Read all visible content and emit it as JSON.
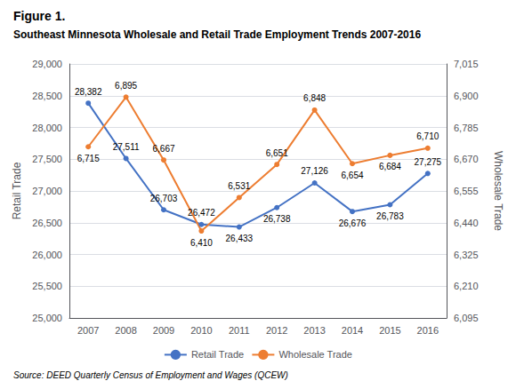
{
  "chart_data": {
    "type": "line",
    "title": "Figure 1.",
    "subtitle": "Southeast Minnesota Wholesale and Retail Trade Employment Trends 2007-2016",
    "source": "Source: DEED Quarterly Census of Employment and Wages (QCEW)",
    "categories": [
      "2007",
      "2008",
      "2009",
      "2010",
      "2011",
      "2012",
      "2013",
      "2014",
      "2015",
      "2016"
    ],
    "ylabel": "Retail Trade",
    "y2label": "Wholesale Trade",
    "ylim": [
      25000,
      29000
    ],
    "yticks": [
      {
        "value": 25000,
        "label": "25,000"
      },
      {
        "value": 25500,
        "label": "25,500"
      },
      {
        "value": 26000,
        "label": "26,000"
      },
      {
        "value": 26500,
        "label": "26,500"
      },
      {
        "value": 27000,
        "label": "27,000"
      },
      {
        "value": 27500,
        "label": "27,500"
      },
      {
        "value": 28000,
        "label": "28,000"
      },
      {
        "value": 28500,
        "label": "28,500"
      },
      {
        "value": 29000,
        "label": "29,000"
      }
    ],
    "y2lim": [
      6095,
      7015
    ],
    "y2ticks": [
      {
        "value": 6095,
        "label": "6,095"
      },
      {
        "value": 6210,
        "label": "6,210"
      },
      {
        "value": 6325,
        "label": "6,325"
      },
      {
        "value": 6440,
        "label": "6,440"
      },
      {
        "value": 6555,
        "label": "6,555"
      },
      {
        "value": 6670,
        "label": "6,670"
      },
      {
        "value": 6785,
        "label": "6,785"
      },
      {
        "value": 6900,
        "label": "6,900"
      },
      {
        "value": 7015,
        "label": "7,015"
      }
    ],
    "grid": true,
    "legend": "bottom",
    "data_labels": true,
    "marker": "circle",
    "series": [
      {
        "name": "Retail Trade",
        "color": "#4472C4",
        "axis": "y",
        "values": [
          28382,
          27511,
          26703,
          26472,
          26433,
          26738,
          27126,
          26676,
          26783,
          27275
        ],
        "value_labels": [
          "28,382",
          "27,511",
          "26,703",
          "26,472",
          "26,433",
          "26,738",
          "27,126",
          "26,676",
          "26,783",
          "27,275"
        ]
      },
      {
        "name": "Wholesale Trade",
        "color": "#ED7D31",
        "axis": "y2",
        "values": [
          6715,
          6895,
          6667,
          6410,
          6531,
          6651,
          6848,
          6654,
          6684,
          6710
        ],
        "value_labels": [
          "6,715",
          "6,895",
          "6,667",
          "6,410",
          "6,531",
          "6,651",
          "6,848",
          "6,654",
          "6,684",
          "6,710"
        ]
      }
    ]
  }
}
